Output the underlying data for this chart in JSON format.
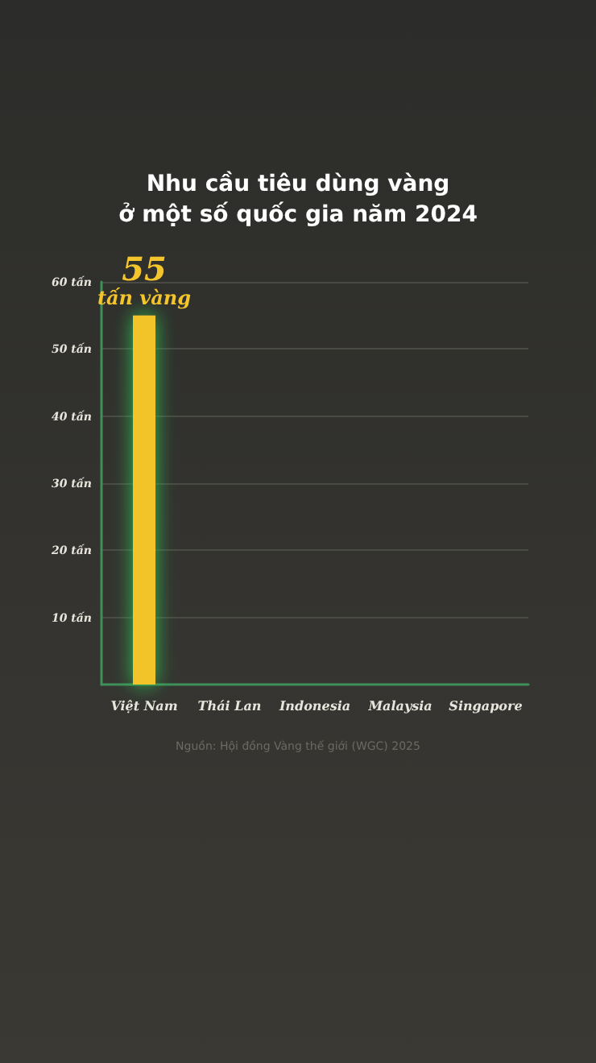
{
  "chart_data": {
    "type": "bar",
    "title": "Nhu cầu tiêu dùng vàng\nở một số quốc gia năm 2024",
    "categories": [
      "Việt Nam",
      "Thái Lan",
      "Indonesia",
      "Malaysia",
      "Singapore"
    ],
    "values": [
      55,
      null,
      null,
      null,
      null
    ],
    "value_labels": [
      "55\ntấn vàng",
      null,
      null,
      null,
      null
    ],
    "color": "#f3c42c",
    "ylim": [
      0,
      60
    ],
    "yticks": [
      {
        "value": 10,
        "label": "10 tấn"
      },
      {
        "value": 20,
        "label": "20 tấn"
      },
      {
        "value": 30,
        "label": "30 tấn"
      },
      {
        "value": 40,
        "label": "40 tấn"
      },
      {
        "value": 50,
        "label": "50 tấn"
      },
      {
        "value": 60,
        "label": "60 tấn"
      }
    ],
    "grid": "y",
    "annotations": [
      "Nguồn: Hội đồng Vàng thế giới (WGC) 2025"
    ]
  }
}
